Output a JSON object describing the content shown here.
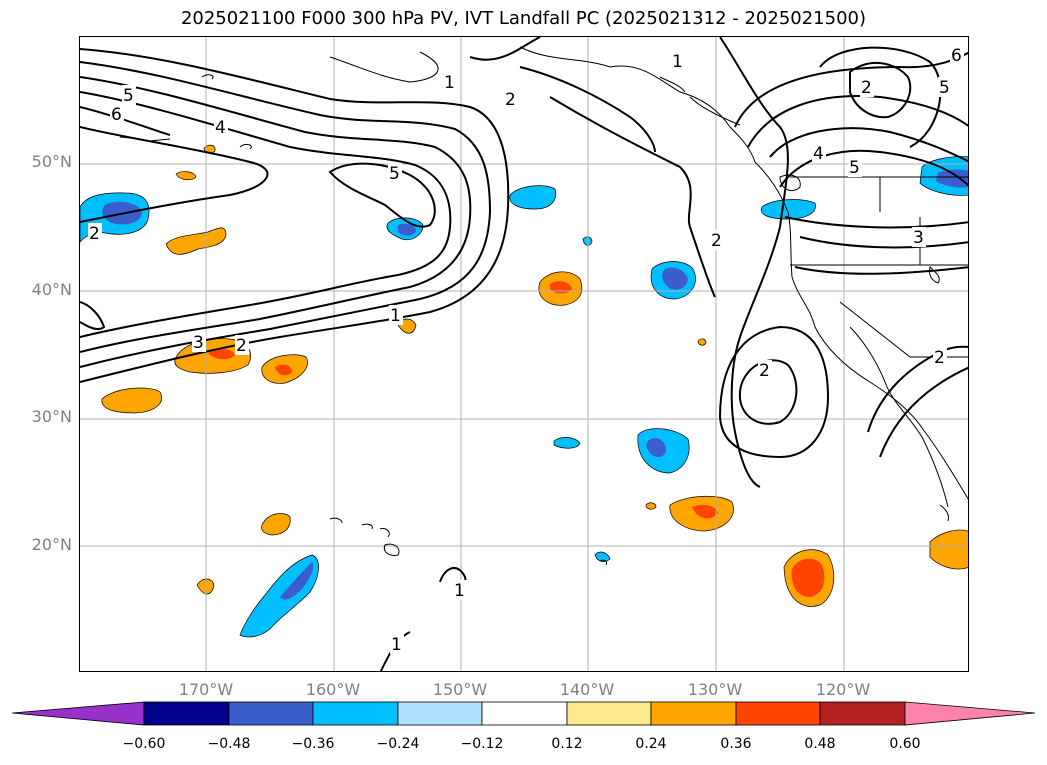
{
  "title": "2025021100 F000 300 hPa PV, IVT Landfall PC (2025021312 - 2025021500)",
  "lat_labels": [
    "50°N",
    "40°N",
    "30°N",
    "20°N"
  ],
  "lon_labels": [
    "170°W",
    "160°W",
    "150°W",
    "140°W",
    "130°W",
    "120°W"
  ],
  "colorbar": {
    "ticks": [
      "−0.60",
      "−0.48",
      "−0.36",
      "−0.24",
      "−0.12",
      "0.12",
      "0.24",
      "0.36",
      "0.48",
      "0.60"
    ],
    "colors": {
      "below_min": "#9932cc",
      "bins": [
        "#00008b",
        "#3a5fcd",
        "#00bfff",
        "#b0e2ff",
        "#ffffff",
        "#ffe98a",
        "#ffa500",
        "#ff4500",
        "#b22222"
      ],
      "above_max": "#ff82ab"
    }
  },
  "contour_labels": [
    "1",
    "2",
    "1",
    "2",
    "5",
    "6",
    "4",
    "5",
    "3",
    "2",
    "1",
    "4",
    "5",
    "2",
    "3",
    "2",
    "2",
    "2",
    "1",
    "1",
    "5",
    "6"
  ],
  "colors": {
    "grid": "#b0b0b0",
    "contour": "#000000",
    "coast": "#000000",
    "tick_text": "#808080"
  }
}
